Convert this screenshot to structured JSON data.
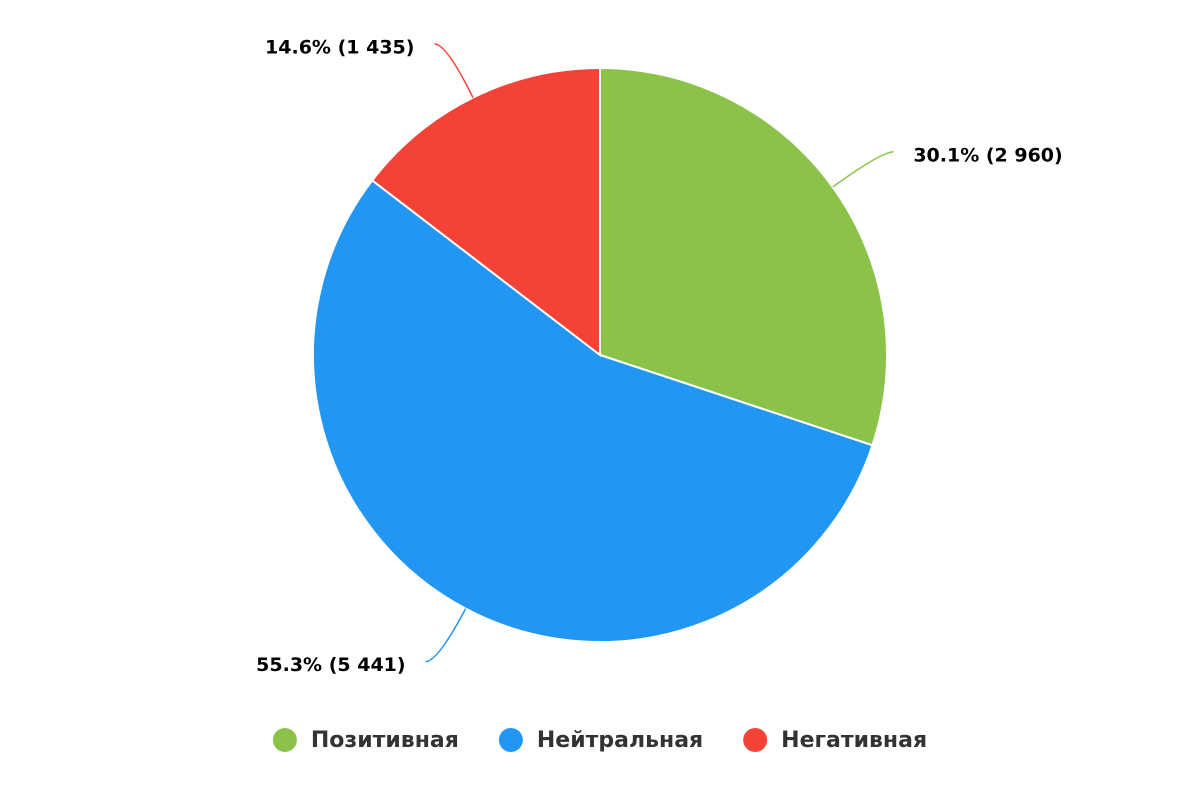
{
  "chart_data": {
    "type": "pie",
    "categories": [
      "Позитивная",
      "Нейтральная",
      "Негативная"
    ],
    "values": [
      2960,
      5441,
      1435
    ],
    "value_labels": [
      "30.1% (2 960)",
      "55.3% (5 441)",
      "14.6% (1 435)"
    ],
    "colors": [
      "#8bc34a",
      "#2196f3",
      "#f44336"
    ],
    "legend": "bottom"
  }
}
